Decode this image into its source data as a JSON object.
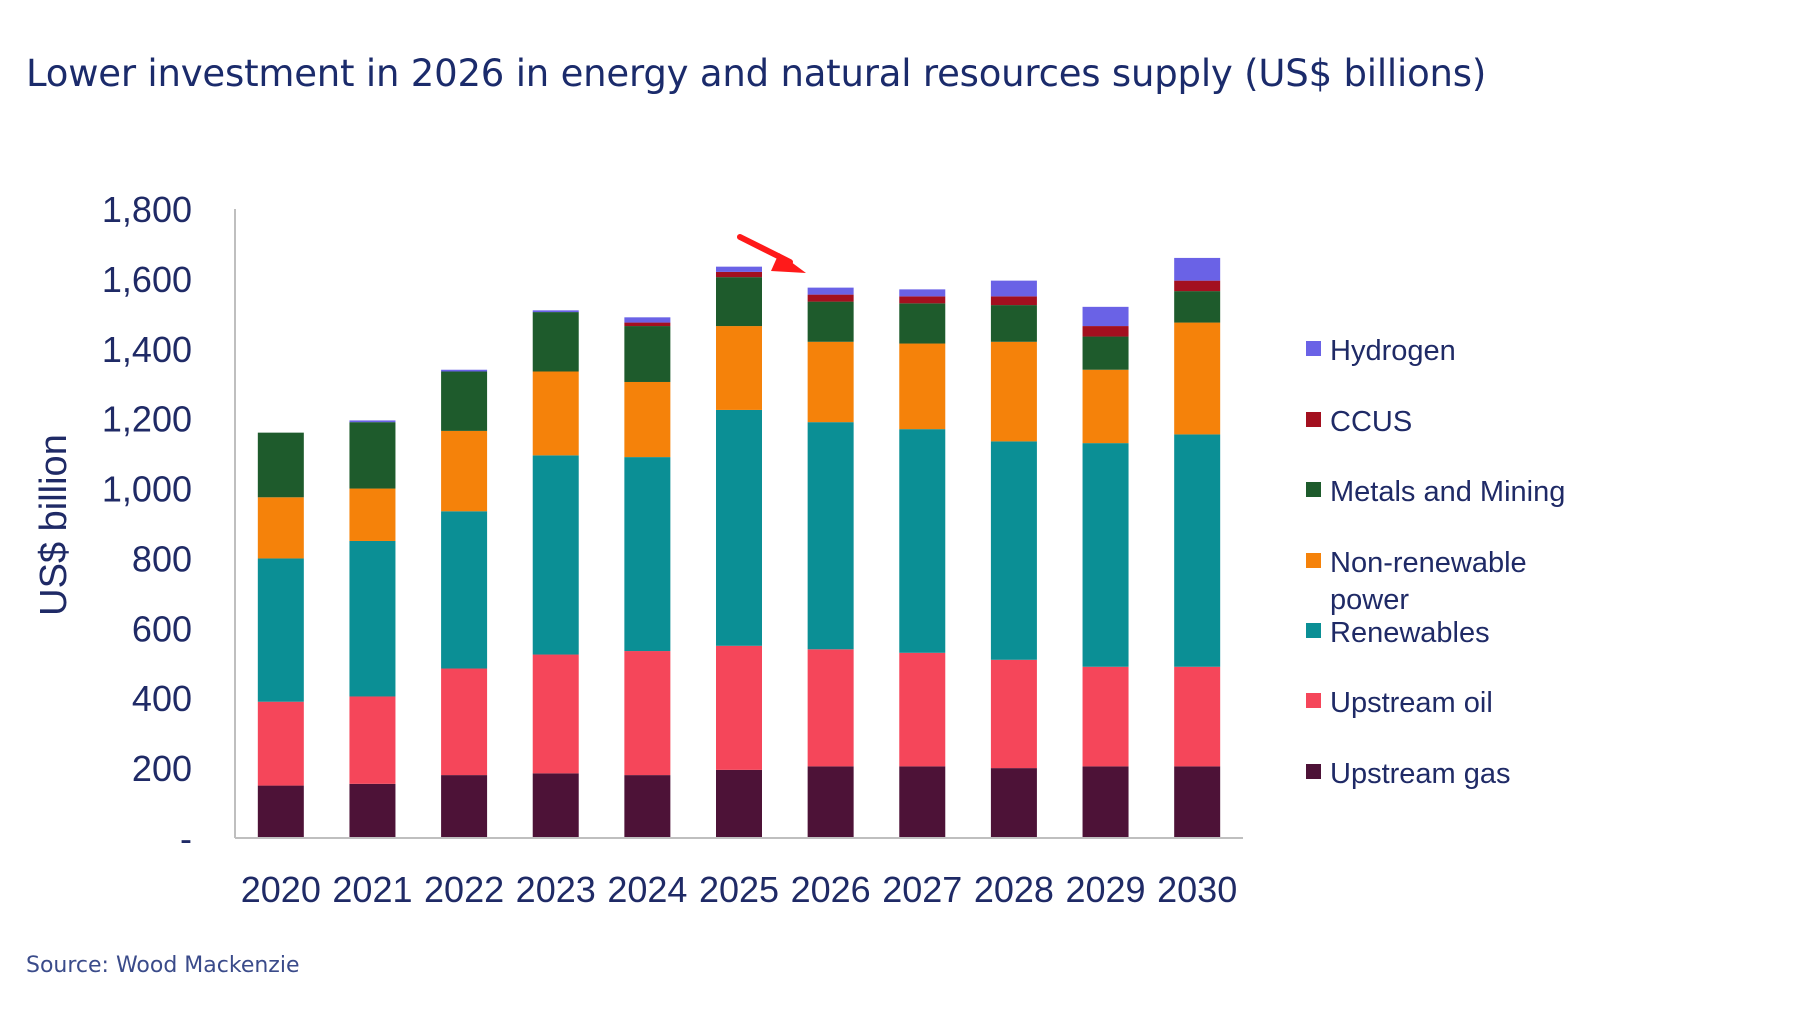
{
  "title": "Lower investment in 2026 in energy and natural resources supply (US$ billions)",
  "source": "Source: Wood Mackenzie",
  "chart_data": {
    "type": "bar",
    "stacked": true,
    "ylabel": "US$ billion",
    "ylim": [
      0,
      1800
    ],
    "yticks": [
      0,
      200,
      400,
      600,
      800,
      1000,
      1200,
      1400,
      1600,
      1800
    ],
    "ytick_labels": [
      "-",
      "200",
      "400",
      "600",
      "800",
      "1,000",
      "1,200",
      "1,400",
      "1,600",
      "1,800"
    ],
    "categories": [
      "2020",
      "2021",
      "2022",
      "2023",
      "2024",
      "2025",
      "2026",
      "2027",
      "2028",
      "2029",
      "2030"
    ],
    "legend_position": "right",
    "annotation": {
      "type": "arrow",
      "color": "#ff1a1a",
      "target_category": "2026"
    },
    "series": [
      {
        "name": "Upstream gas",
        "color": "#4d1237",
        "values": [
          150,
          155,
          180,
          185,
          180,
          195,
          205,
          205,
          200,
          205,
          205
        ]
      },
      {
        "name": "Upstream oil",
        "color": "#f5465a",
        "values": [
          240,
          250,
          305,
          340,
          355,
          355,
          335,
          325,
          310,
          285,
          285
        ]
      },
      {
        "name": "Renewables",
        "color": "#0b8f95",
        "values": [
          410,
          445,
          450,
          570,
          555,
          675,
          650,
          640,
          625,
          640,
          665
        ]
      },
      {
        "name": "Non-renewable\npower",
        "color": "#f5820a",
        "values": [
          175,
          150,
          230,
          240,
          215,
          240,
          230,
          245,
          285,
          210,
          320
        ]
      },
      {
        "name": "Metals and Mining",
        "color": "#1e5b2c",
        "values": [
          185,
          190,
          170,
          170,
          160,
          140,
          115,
          115,
          105,
          95,
          90
        ]
      },
      {
        "name": "CCUS",
        "color": "#a3101f",
        "values": [
          0,
          0,
          0,
          0,
          10,
          15,
          20,
          20,
          25,
          30,
          30
        ]
      },
      {
        "name": "Hydrogen",
        "color": "#6a62e6",
        "values": [
          0,
          5,
          5,
          5,
          15,
          15,
          20,
          20,
          45,
          55,
          65
        ]
      }
    ]
  }
}
